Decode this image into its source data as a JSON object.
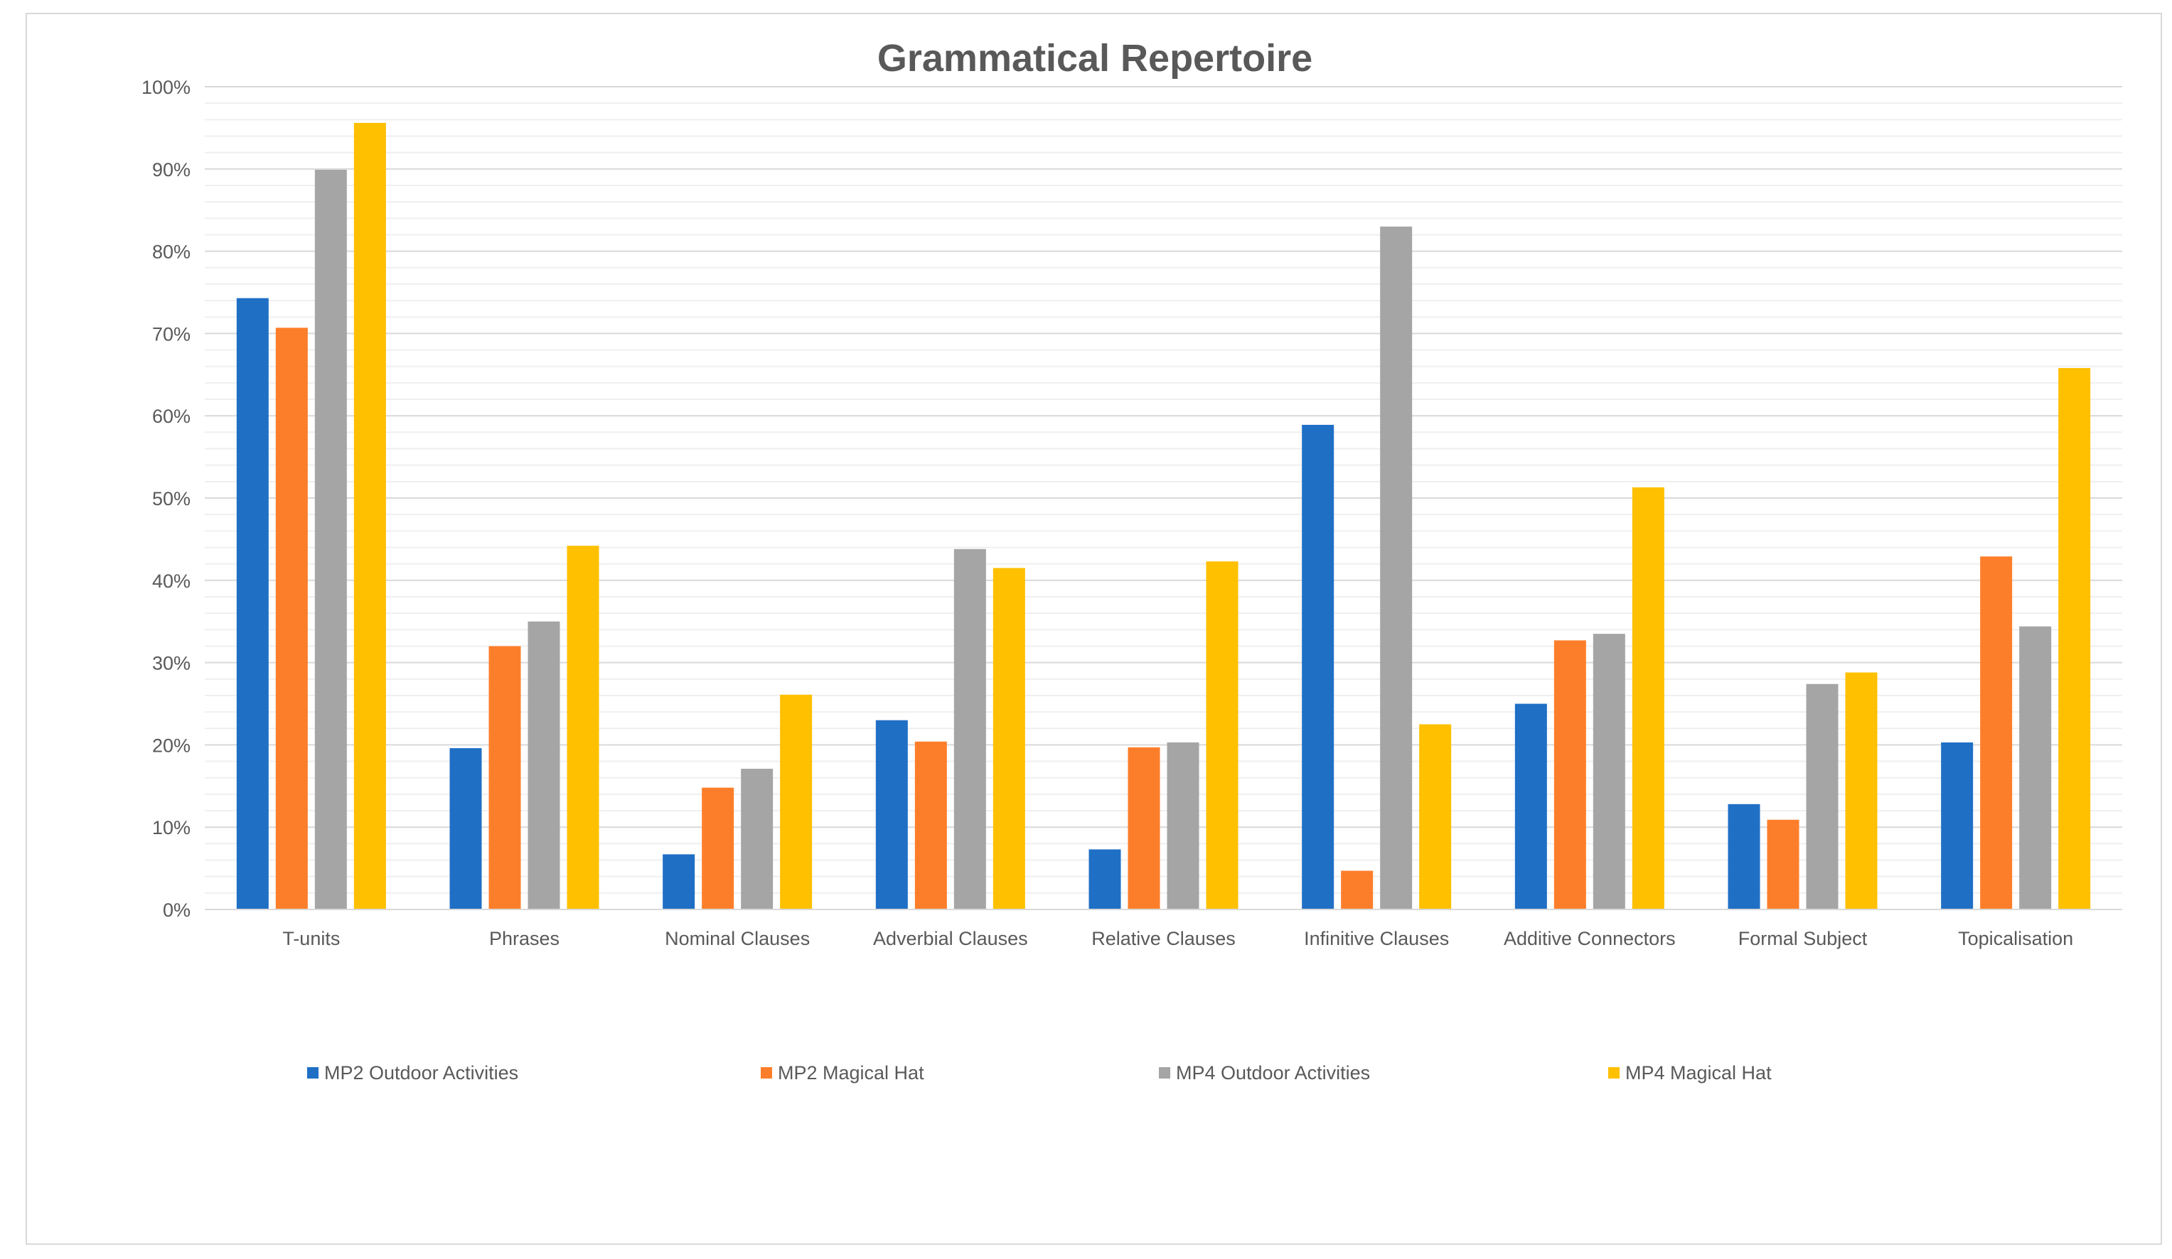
{
  "chart_data": {
    "type": "bar",
    "title": "Grammatical Repertoire",
    "xlabel": "",
    "ylabel": "",
    "ylim": [
      0,
      100
    ],
    "ytick_step": 10,
    "ytick_suffix": "%",
    "grid": true,
    "legend_position": "bottom",
    "categories": [
      "T-units",
      "Phrases",
      "Nominal Clauses",
      "Adverbial Clauses",
      "Relative Clauses",
      "Infinitive Clauses",
      "Additive Connectors",
      "Formal Subject",
      "Topicalisation"
    ],
    "series": [
      {
        "name": "MP2 Outdoor Activities",
        "color": "#1f6fc5",
        "values": [
          74.3,
          19.6,
          6.7,
          23.0,
          7.3,
          58.9,
          25.0,
          12.8,
          20.3
        ]
      },
      {
        "name": "MP2 Magical Hat",
        "color": "#fd7e2a",
        "values": [
          70.7,
          32.0,
          14.8,
          20.4,
          19.7,
          4.7,
          32.7,
          10.9,
          42.9
        ]
      },
      {
        "name": "MP4 Outdoor Activities",
        "color": "#a5a5a5",
        "values": [
          89.9,
          35.0,
          17.1,
          43.8,
          20.3,
          83.0,
          33.5,
          27.4,
          34.4
        ]
      },
      {
        "name": "MP4 Magical Hat",
        "color": "#ffc000",
        "values": [
          95.6,
          44.2,
          26.1,
          41.5,
          42.3,
          22.5,
          51.3,
          28.8,
          65.8
        ]
      }
    ]
  }
}
